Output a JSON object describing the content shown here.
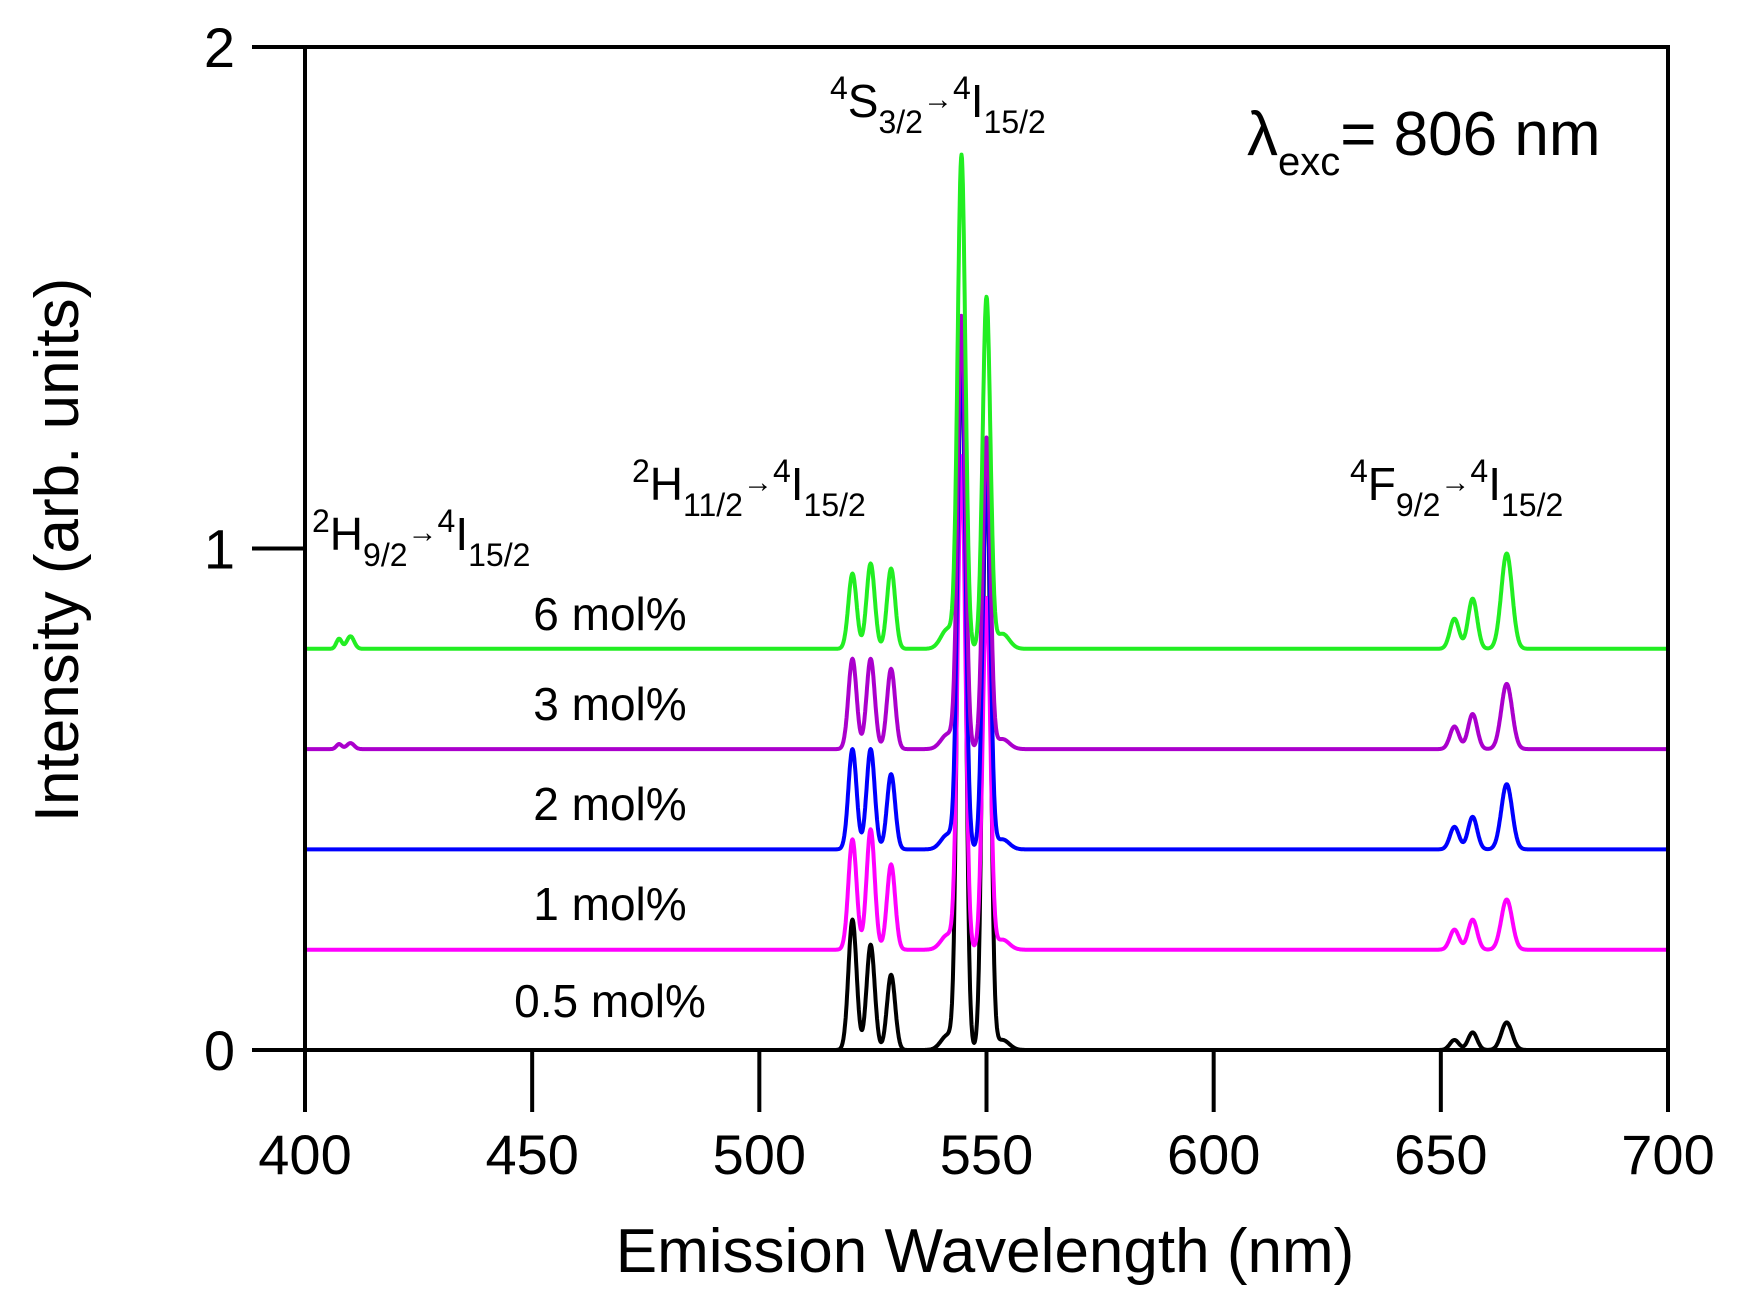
{
  "chart_data": {
    "type": "line",
    "xlabel": "Emission Wavelength (nm)",
    "ylabel": "Intensity (arb. units)",
    "xlim": [
      400,
      700
    ],
    "ylim": [
      0,
      2
    ],
    "x_ticks": [
      400,
      450,
      500,
      550,
      600,
      650,
      700
    ],
    "x_tick_labels": [
      "400",
      "450",
      "500",
      "550",
      "600",
      "650",
      "700"
    ],
    "y_ticks": [
      0,
      1,
      2
    ],
    "y_tick_labels": [
      "0",
      "1",
      "2"
    ],
    "grid": false,
    "excitation": {
      "symbol": "λ",
      "sub": "exc",
      "text": "= 806 nm"
    },
    "transitions": [
      {
        "upper_sup": "2",
        "upper": "H",
        "upper_sub": "9/2",
        "arrow": "→",
        "lower_sup": "4",
        "lower": "I",
        "lower_sub": "15/2"
      },
      {
        "upper_sup": "2",
        "upper": "H",
        "upper_sub": "11/2",
        "arrow": "→",
        "lower_sup": "4",
        "lower": "I",
        "lower_sub": "15/2"
      },
      {
        "upper_sup": "4",
        "upper": "S",
        "upper_sub": "3/2",
        "arrow": "→",
        "lower_sup": "4",
        "lower": "I",
        "lower_sub": "15/2"
      },
      {
        "upper_sup": "4",
        "upper": "F",
        "upper_sub": "9/2",
        "arrow": "→",
        "lower_sup": "4",
        "lower": "I",
        "lower_sub": "15/2"
      }
    ],
    "series": [
      {
        "name": "0.5 mol%",
        "color": "#000000",
        "offset": 0.0,
        "x_start": 400,
        "x_end": 700,
        "peaks": [
          {
            "x": 520.5,
            "a": 0.26,
            "w": 0.9
          },
          {
            "x": 524.5,
            "a": 0.21,
            "w": 0.9
          },
          {
            "x": 529.0,
            "a": 0.15,
            "w": 0.9
          },
          {
            "x": 544.5,
            "a": 1.45,
            "w": 0.85
          },
          {
            "x": 550.0,
            "a": 1.2,
            "w": 0.85
          },
          {
            "x": 541.5,
            "a": 0.03,
            "w": 1.5
          },
          {
            "x": 553.5,
            "a": 0.02,
            "w": 1.5
          },
          {
            "x": 653.0,
            "a": 0.02,
            "w": 1.0
          },
          {
            "x": 657.0,
            "a": 0.035,
            "w": 1.0
          },
          {
            "x": 664.5,
            "a": 0.055,
            "w": 1.2
          }
        ]
      },
      {
        "name": "1 mol%",
        "color": "#ff00ff",
        "offset": 0.2,
        "x_start": 400,
        "x_end": 700,
        "peaks": [
          {
            "x": 520.5,
            "a": 0.22,
            "w": 0.9
          },
          {
            "x": 524.5,
            "a": 0.24,
            "w": 0.9
          },
          {
            "x": 529.0,
            "a": 0.17,
            "w": 0.9
          },
          {
            "x": 544.5,
            "a": 0.98,
            "w": 0.85
          },
          {
            "x": 550.0,
            "a": 0.7,
            "w": 0.85
          },
          {
            "x": 541.5,
            "a": 0.03,
            "w": 1.5
          },
          {
            "x": 553.5,
            "a": 0.02,
            "w": 1.5
          },
          {
            "x": 653.0,
            "a": 0.04,
            "w": 1.0
          },
          {
            "x": 657.0,
            "a": 0.06,
            "w": 1.0
          },
          {
            "x": 664.5,
            "a": 0.1,
            "w": 1.2
          }
        ]
      },
      {
        "name": "2 mol%",
        "color": "#0000ff",
        "offset": 0.4,
        "x_start": 400,
        "x_end": 700,
        "peaks": [
          {
            "x": 520.5,
            "a": 0.2,
            "w": 0.9
          },
          {
            "x": 524.5,
            "a": 0.2,
            "w": 0.9
          },
          {
            "x": 529.0,
            "a": 0.15,
            "w": 0.9
          },
          {
            "x": 544.5,
            "a": 1.0,
            "w": 0.85
          },
          {
            "x": 550.0,
            "a": 0.74,
            "w": 0.85
          },
          {
            "x": 541.5,
            "a": 0.03,
            "w": 1.5
          },
          {
            "x": 553.5,
            "a": 0.02,
            "w": 1.5
          },
          {
            "x": 653.0,
            "a": 0.045,
            "w": 1.0
          },
          {
            "x": 657.0,
            "a": 0.065,
            "w": 1.0
          },
          {
            "x": 664.5,
            "a": 0.13,
            "w": 1.2
          }
        ]
      },
      {
        "name": "3 mol%",
        "color": "#aa00cc",
        "offset": 0.6,
        "x_start": 400,
        "x_end": 700,
        "peaks": [
          {
            "x": 407.5,
            "a": 0.01,
            "w": 0.6
          },
          {
            "x": 410.0,
            "a": 0.012,
            "w": 0.8
          },
          {
            "x": 520.5,
            "a": 0.18,
            "w": 0.9
          },
          {
            "x": 524.5,
            "a": 0.18,
            "w": 0.9
          },
          {
            "x": 529.0,
            "a": 0.16,
            "w": 0.9
          },
          {
            "x": 544.5,
            "a": 0.86,
            "w": 0.85
          },
          {
            "x": 550.0,
            "a": 0.62,
            "w": 0.85
          },
          {
            "x": 541.5,
            "a": 0.03,
            "w": 1.5
          },
          {
            "x": 553.5,
            "a": 0.02,
            "w": 1.5
          },
          {
            "x": 653.0,
            "a": 0.045,
            "w": 1.0
          },
          {
            "x": 657.0,
            "a": 0.07,
            "w": 1.0
          },
          {
            "x": 664.5,
            "a": 0.13,
            "w": 1.2
          }
        ]
      },
      {
        "name": "6 mol%",
        "color": "#22ee22",
        "offset": 0.8,
        "x_start": 400,
        "x_end": 700,
        "peaks": [
          {
            "x": 407.5,
            "a": 0.02,
            "w": 0.6
          },
          {
            "x": 410.0,
            "a": 0.025,
            "w": 0.8
          },
          {
            "x": 520.5,
            "a": 0.15,
            "w": 0.9
          },
          {
            "x": 524.5,
            "a": 0.17,
            "w": 0.9
          },
          {
            "x": 529.0,
            "a": 0.16,
            "w": 0.9
          },
          {
            "x": 544.5,
            "a": 0.98,
            "w": 0.85
          },
          {
            "x": 550.0,
            "a": 0.7,
            "w": 0.85
          },
          {
            "x": 541.5,
            "a": 0.04,
            "w": 1.5
          },
          {
            "x": 553.5,
            "a": 0.03,
            "w": 1.5
          },
          {
            "x": 653.0,
            "a": 0.06,
            "w": 1.0
          },
          {
            "x": 657.0,
            "a": 0.1,
            "w": 1.0
          },
          {
            "x": 664.5,
            "a": 0.19,
            "w": 1.2
          }
        ]
      }
    ]
  }
}
